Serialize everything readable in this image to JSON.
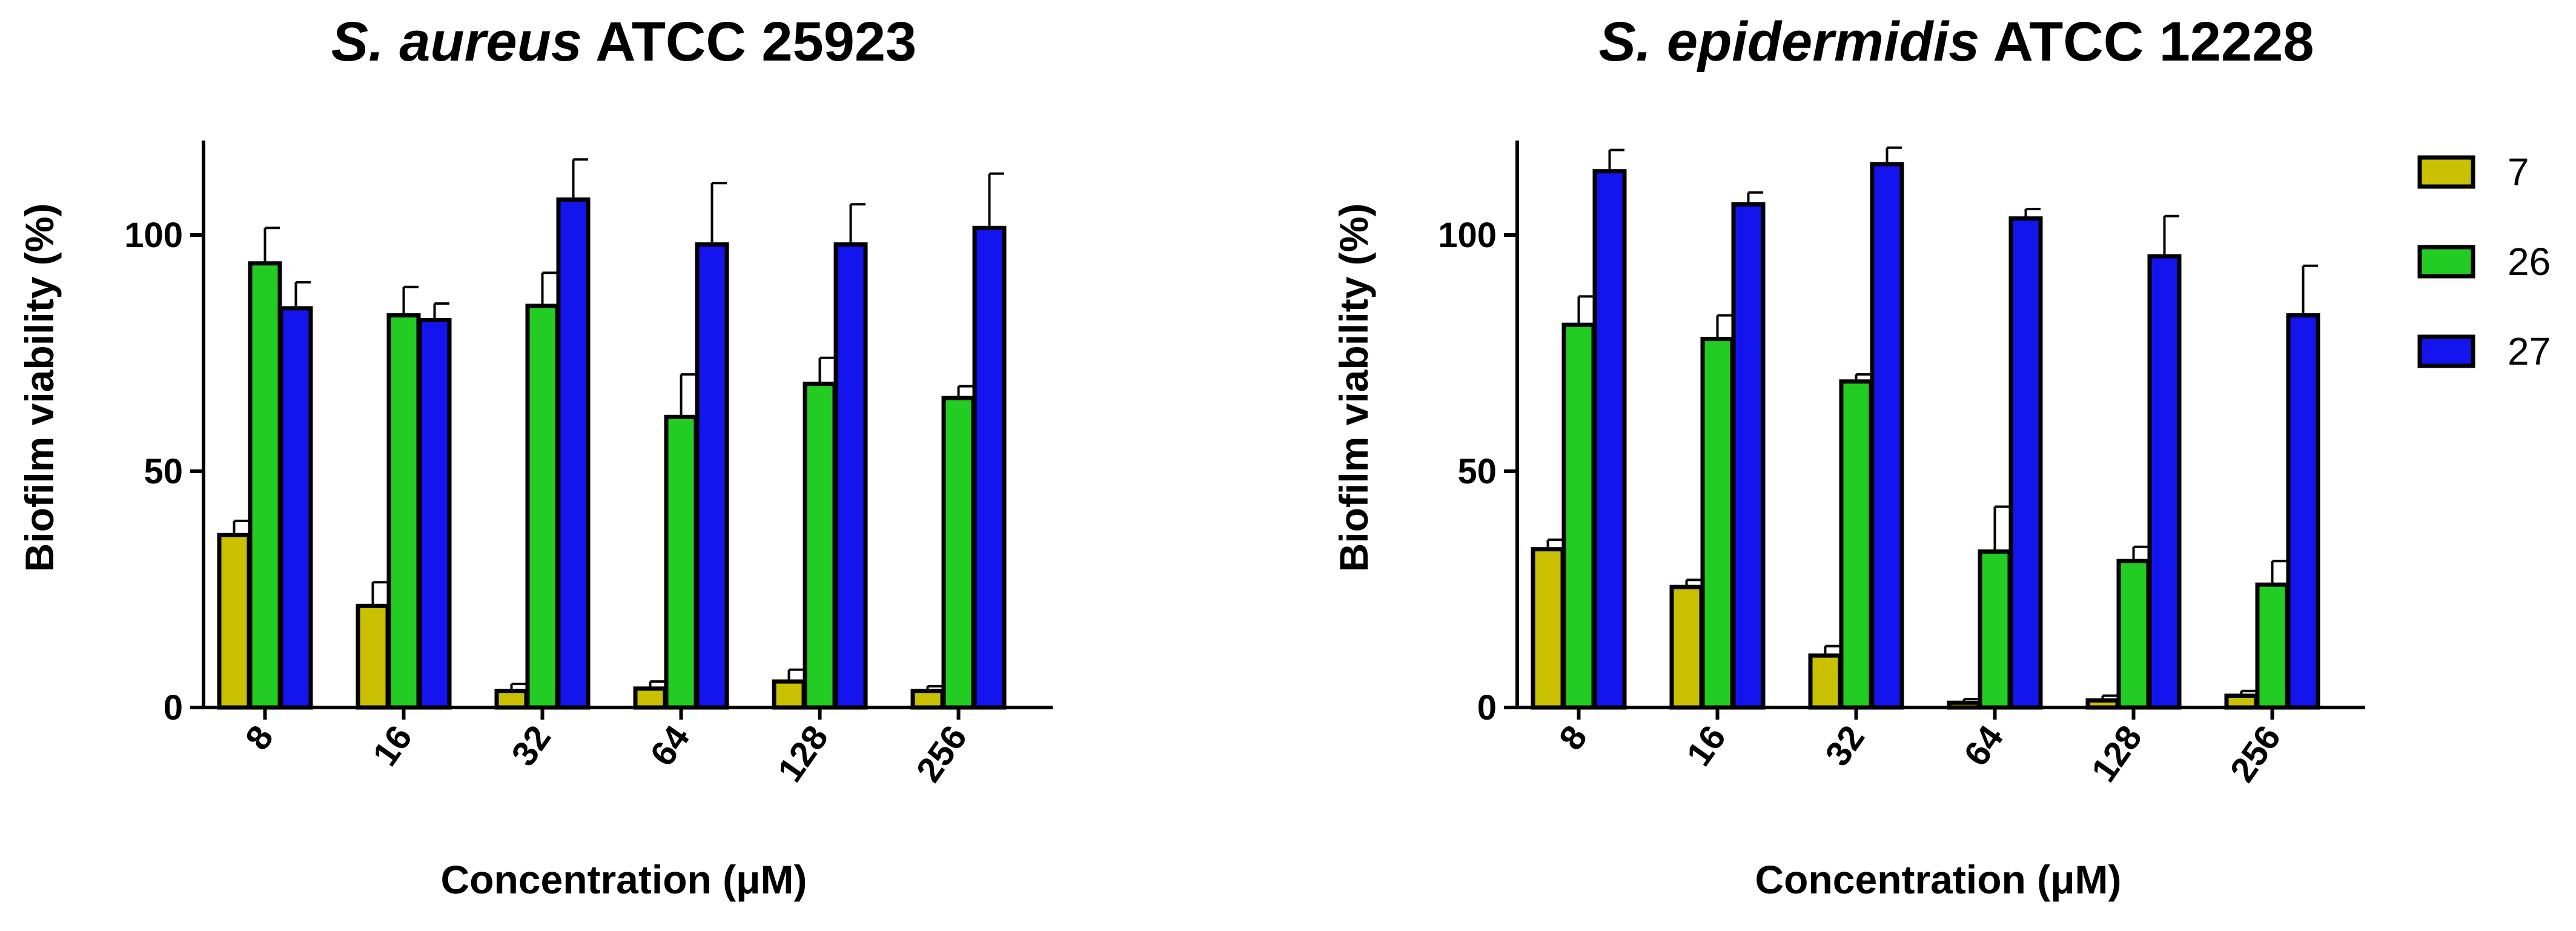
{
  "chart_data": [
    {
      "type": "bar",
      "title": {
        "italic": "S. aureus",
        "normal": "ATCC 25923"
      },
      "xlabel": "Concentration (μM)",
      "ylabel": "Biofilm viability (%)",
      "ylim": [
        0,
        120
      ],
      "yticks": [
        0,
        50,
        100
      ],
      "categories": [
        "8",
        "16",
        "32",
        "64",
        "128",
        "256"
      ],
      "series": [
        {
          "name": "7",
          "color": "#c8c000",
          "values": [
            36.5,
            21.5,
            3.5,
            4.0,
            5.5,
            3.5
          ],
          "errors": [
            3.0,
            5.0,
            1.5,
            1.5,
            2.5,
            1.0
          ]
        },
        {
          "name": "26",
          "color": "#22cc22",
          "values": [
            94.0,
            83.0,
            85.0,
            61.5,
            68.5,
            65.5
          ],
          "errors": [
            7.5,
            6.0,
            7.0,
            9.0,
            5.5,
            2.5
          ]
        },
        {
          "name": "27",
          "color": "#1414ee",
          "values": [
            84.5,
            82.0,
            107.5,
            98.0,
            98.0,
            101.5
          ],
          "errors": [
            5.5,
            3.5,
            8.5,
            13.0,
            8.5,
            11.5
          ]
        }
      ]
    },
    {
      "type": "bar",
      "title": {
        "italic": "S. epidermidis",
        "normal": "ATCC 12228"
      },
      "xlabel": "Concentration (μM)",
      "ylabel": "Biofilm viability (%)",
      "ylim": [
        0,
        120
      ],
      "yticks": [
        0,
        50,
        100
      ],
      "categories": [
        "8",
        "16",
        "32",
        "64",
        "128",
        "256"
      ],
      "series": [
        {
          "name": "7",
          "color": "#c8c000",
          "values": [
            33.5,
            25.5,
            11.0,
            1.0,
            1.5,
            2.5
          ],
          "errors": [
            2.0,
            1.5,
            2.0,
            0.8,
            1.0,
            1.0
          ]
        },
        {
          "name": "26",
          "color": "#22cc22",
          "values": [
            81.0,
            78.0,
            69.0,
            33.0,
            31.0,
            26.0
          ],
          "errors": [
            6.0,
            5.0,
            1.5,
            9.5,
            3.0,
            5.0
          ]
        },
        {
          "name": "27",
          "color": "#1414ee",
          "values": [
            113.5,
            106.5,
            115.0,
            103.5,
            95.5,
            83.0
          ],
          "errors": [
            4.5,
            2.5,
            3.5,
            2.0,
            8.5,
            10.5
          ]
        }
      ]
    }
  ],
  "legend": {
    "position": "right",
    "entries": [
      {
        "label": "7",
        "color": "#c8c000"
      },
      {
        "label": "26",
        "color": "#22cc22"
      },
      {
        "label": "27",
        "color": "#1414ee"
      }
    ]
  }
}
